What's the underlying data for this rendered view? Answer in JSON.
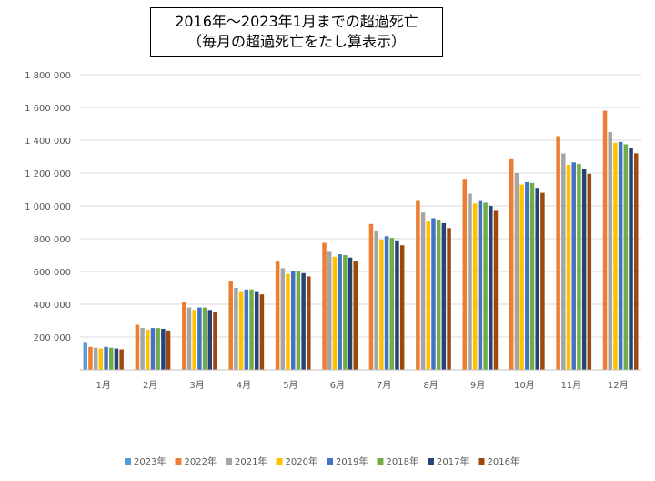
{
  "chart_data": {
    "type": "bar",
    "title": "2016年〜2023年1月までの超過死亡",
    "subtitle": "（毎月の超過死亡をたし算表示）",
    "xlabel": "",
    "ylabel": "",
    "ylim": [
      0,
      1800000
    ],
    "y_ticks": [
      "200 000",
      "400 000",
      "600 000",
      "800 000",
      "1 000 000",
      "1 200 000",
      "1 400 000",
      "1 600 000",
      "1 800 000"
    ],
    "y_tick_values": [
      200000,
      400000,
      600000,
      800000,
      1000000,
      1200000,
      1400000,
      1600000,
      1800000
    ],
    "grid": true,
    "legend_position": "bottom",
    "categories": [
      "1月",
      "2月",
      "3月",
      "4月",
      "5月",
      "6月",
      "7月",
      "8月",
      "9月",
      "10月",
      "11月",
      "12月"
    ],
    "series": [
      {
        "name": "2023年",
        "color": "#5B9BD5",
        "values": [
          170000,
          null,
          null,
          null,
          null,
          null,
          null,
          null,
          null,
          null,
          null,
          null
        ]
      },
      {
        "name": "2022年",
        "color": "#ED7D31",
        "values": [
          140000,
          275000,
          415000,
          540000,
          660000,
          775000,
          890000,
          1030000,
          1160000,
          1290000,
          1425000,
          1580000
        ]
      },
      {
        "name": "2021年",
        "color": "#A5A5A5",
        "values": [
          135000,
          255000,
          380000,
          500000,
          620000,
          720000,
          845000,
          960000,
          1075000,
          1200000,
          1320000,
          1450000
        ]
      },
      {
        "name": "2020年",
        "color": "#FFC000",
        "values": [
          130000,
          245000,
          365000,
          480000,
          585000,
          690000,
          795000,
          905000,
          1015000,
          1130000,
          1250000,
          1385000
        ]
      },
      {
        "name": "2019年",
        "color": "#4472C4",
        "values": [
          140000,
          255000,
          380000,
          490000,
          600000,
          705000,
          815000,
          925000,
          1030000,
          1145000,
          1265000,
          1390000
        ]
      },
      {
        "name": "2018年",
        "color": "#70AD47",
        "values": [
          135000,
          255000,
          380000,
          490000,
          600000,
          700000,
          805000,
          915000,
          1020000,
          1140000,
          1255000,
          1375000
        ]
      },
      {
        "name": "2017年",
        "color": "#264478",
        "values": [
          130000,
          250000,
          365000,
          480000,
          590000,
          685000,
          790000,
          895000,
          1000000,
          1110000,
          1225000,
          1350000
        ]
      },
      {
        "name": "2016年",
        "color": "#9E480E",
        "values": [
          125000,
          240000,
          355000,
          460000,
          570000,
          665000,
          760000,
          865000,
          970000,
          1080000,
          1195000,
          1320000
        ]
      }
    ]
  }
}
